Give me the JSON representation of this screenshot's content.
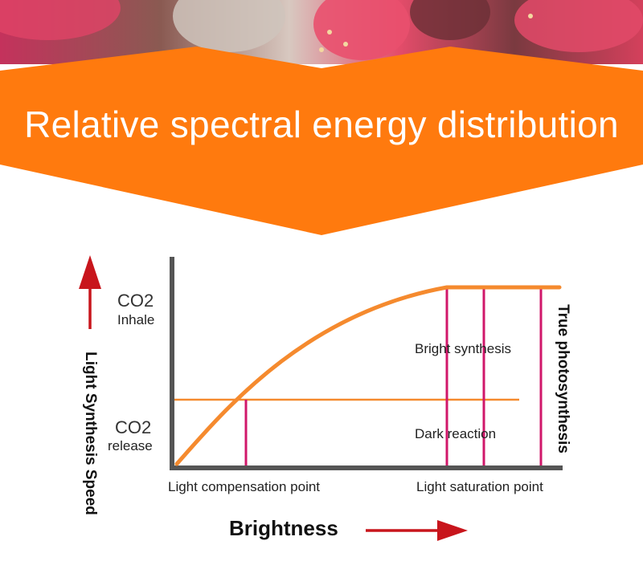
{
  "banner": {
    "title": "Relative spectral energy distribution",
    "color": "#FF7A0E"
  },
  "diagram": {
    "y_axis_label": "Light Synthesis Speed",
    "x_axis_label": "Brightness",
    "right_label": "True photosynthesis",
    "co2_top": {
      "formula": "CO2",
      "word": "Inhale"
    },
    "co2_bottom": {
      "formula": "CO2",
      "word": "release"
    },
    "region_upper": "Bright synthesis",
    "region_lower": "Dark reaction",
    "tick_left": "Light compensation point",
    "tick_right": "Light saturation point",
    "colors": {
      "curve": "#F58A2E",
      "marker_lines": "#D0176A",
      "axis": "#555555",
      "arrow": "#C8151C"
    }
  }
}
